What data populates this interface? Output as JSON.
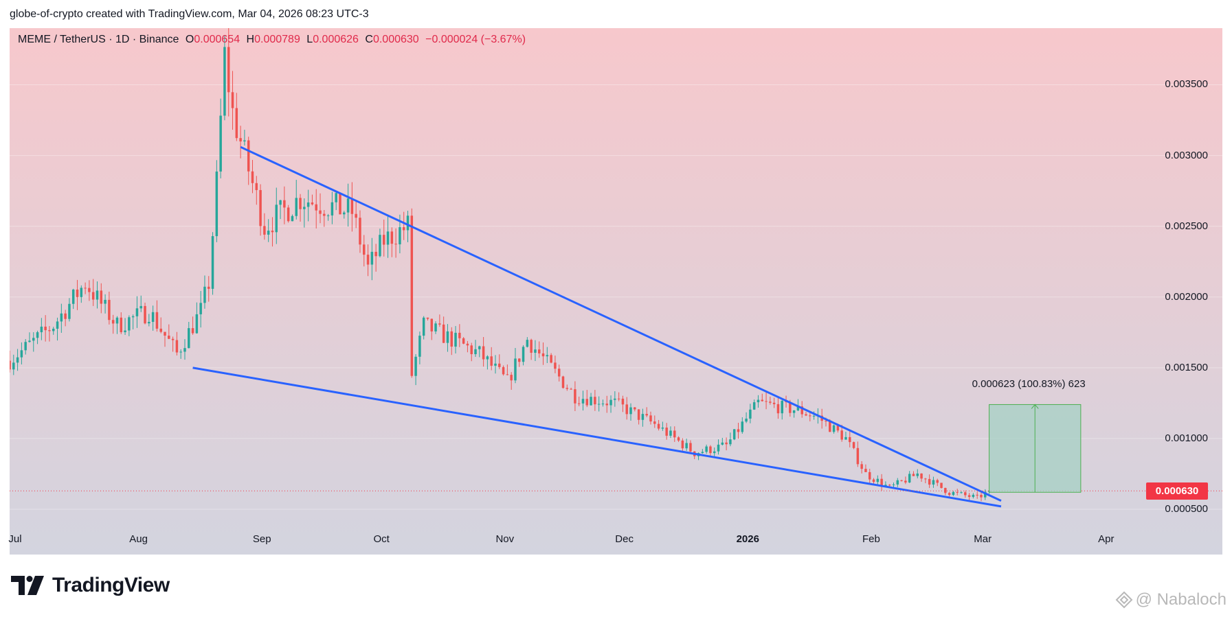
{
  "header": {
    "caption": "globe-of-crypto created with TradingView.com, Mar 04, 2026 08:23 UTC-3"
  },
  "legend": {
    "symbol": "MEME / TetherUS · 1D · Binance",
    "open_label": "O",
    "open": "0.000654",
    "high_label": "H",
    "high": "0.000789",
    "low_label": "L",
    "low": "0.000626",
    "close_label": "C",
    "close": "0.000630",
    "change": "−0.000024 (−3.67%)"
  },
  "chart_data": {
    "type": "candlestick",
    "title": "MEME / TetherUS · 1D · Binance",
    "y_axis_ticks": [
      "0.003500",
      "0.003000",
      "0.002500",
      "0.002000",
      "0.001500",
      "0.001000",
      "0.000500"
    ],
    "y_tick_values": [
      0.0035,
      0.003,
      0.0025,
      0.002,
      0.0015,
      0.001,
      0.0005
    ],
    "x_axis_ticks": [
      {
        "label": "Jul",
        "date": "2025-07-01"
      },
      {
        "label": "Aug",
        "date": "2025-08-01"
      },
      {
        "label": "Sep",
        "date": "2025-09-01"
      },
      {
        "label": "Oct",
        "date": "2025-10-01"
      },
      {
        "label": "Nov",
        "date": "2025-11-01"
      },
      {
        "label": "Dec",
        "date": "2025-12-01"
      },
      {
        "label": "2026",
        "date": "2026-01-01",
        "bold": true
      },
      {
        "label": "Feb",
        "date": "2026-02-01"
      },
      {
        "label": "Mar",
        "date": "2026-03-01"
      },
      {
        "label": "Apr",
        "date": "2026-04-01"
      }
    ],
    "ylim": [
      0.00018,
      0.0039
    ],
    "xlim": [
      "2025-07-01",
      "2026-04-10"
    ],
    "last_price": "0.000630",
    "last_price_value": 0.00063,
    "price_key_points": [
      {
        "date": "2025-07-01",
        "close": 0.00155
      },
      {
        "date": "2025-07-12",
        "close": 0.0018
      },
      {
        "date": "2025-07-20",
        "close": 0.0021
      },
      {
        "date": "2025-07-28",
        "close": 0.0018
      },
      {
        "date": "2025-08-05",
        "close": 0.0019
      },
      {
        "date": "2025-08-12",
        "close": 0.0016
      },
      {
        "date": "2025-08-18",
        "close": 0.0019
      },
      {
        "date": "2025-08-20",
        "close": 0.0021
      },
      {
        "date": "2025-08-22",
        "close": 0.0028
      },
      {
        "date": "2025-08-24",
        "close": 0.0037
      },
      {
        "date": "2025-08-26",
        "close": 0.0033
      },
      {
        "date": "2025-08-28",
        "close": 0.0031
      },
      {
        "date": "2025-09-03",
        "close": 0.0025
      },
      {
        "date": "2025-09-12",
        "close": 0.0027
      },
      {
        "date": "2025-09-25",
        "close": 0.0026
      },
      {
        "date": "2025-09-29",
        "close": 0.0022
      },
      {
        "date": "2025-10-03",
        "close": 0.0024
      },
      {
        "date": "2025-10-09",
        "close": 0.0025
      },
      {
        "date": "2025-10-10",
        "close": 0.00145
      },
      {
        "date": "2025-10-13",
        "close": 0.0018
      },
      {
        "date": "2025-10-20",
        "close": 0.0017
      },
      {
        "date": "2025-10-27",
        "close": 0.0016
      },
      {
        "date": "2025-11-03",
        "close": 0.0014
      },
      {
        "date": "2025-11-08",
        "close": 0.0017
      },
      {
        "date": "2025-11-20",
        "close": 0.0013
      },
      {
        "date": "2025-11-30",
        "close": 0.00125
      },
      {
        "date": "2025-12-10",
        "close": 0.0011
      },
      {
        "date": "2025-12-20",
        "close": 0.0009
      },
      {
        "date": "2025-12-28",
        "close": 0.00095
      },
      {
        "date": "2026-01-05",
        "close": 0.00125
      },
      {
        "date": "2026-01-15",
        "close": 0.0012
      },
      {
        "date": "2026-01-20",
        "close": 0.00115
      },
      {
        "date": "2026-01-27",
        "close": 0.001
      },
      {
        "date": "2026-02-01",
        "close": 0.00075
      },
      {
        "date": "2026-02-07",
        "close": 0.00065
      },
      {
        "date": "2026-02-14",
        "close": 0.00075
      },
      {
        "date": "2026-02-22",
        "close": 0.00062
      },
      {
        "date": "2026-03-01",
        "close": 0.00058
      },
      {
        "date": "2026-03-04",
        "close": 0.00063
      }
    ],
    "drawings": {
      "upper_trendline": [
        {
          "date": "2025-08-28",
          "price": 0.00306
        },
        {
          "date": "2026-03-07",
          "price": 0.00056
        }
      ],
      "lower_trendline": [
        {
          "date": "2025-08-16",
          "price": 0.0015
        },
        {
          "date": "2026-03-07",
          "price": 0.00052
        }
      ],
      "measure": {
        "from_date": "2026-03-04",
        "to_date": "2026-03-27",
        "from_price": 0.00062,
        "to_price": 0.00124,
        "label": "0.000623 (100.83%) 623"
      }
    }
  },
  "colors": {
    "up": "#26a69a",
    "down": "#ef5350",
    "trendline": "#2962ff",
    "bg_top": "#f7c8cc",
    "bg_bottom": "#d3d4df",
    "price_tag": "#f23645",
    "measure_fill": "#a6d0c4"
  },
  "footer": {
    "brand": "TradingView",
    "watermark": "@ Nabaloch"
  }
}
